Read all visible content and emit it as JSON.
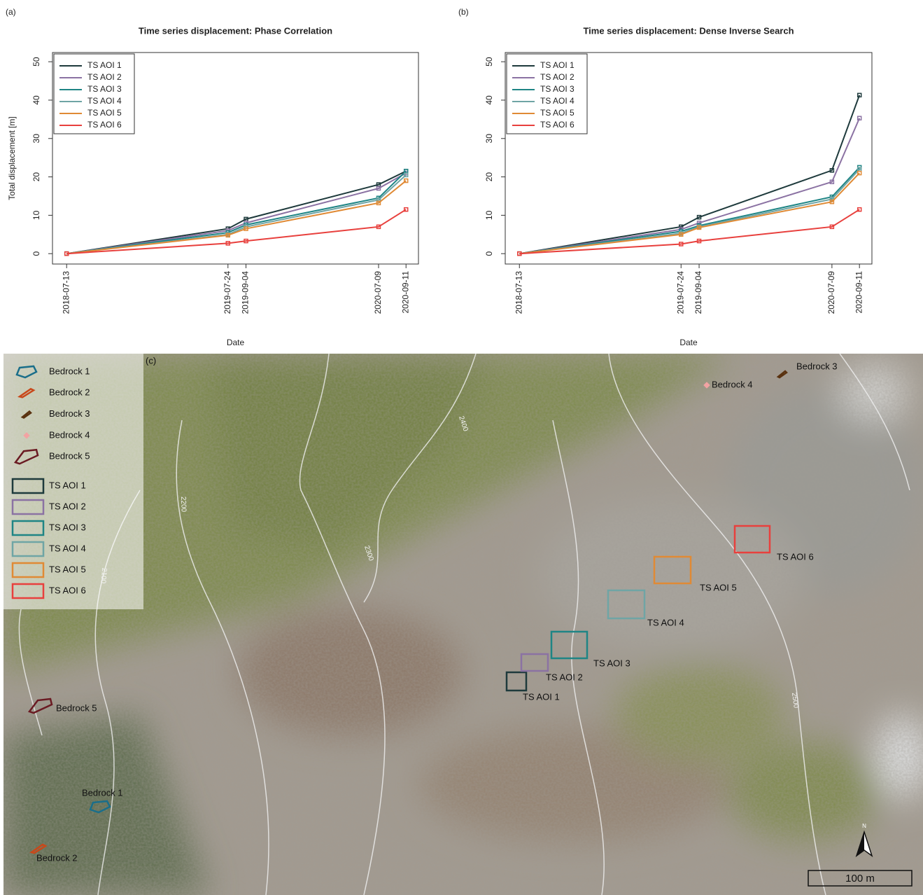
{
  "chart_data": [
    {
      "type": "line",
      "panel_label": "(a)",
      "title": "Time series displacement: Phase Correlation",
      "y_label": "Total displacement [m]",
      "x_label": "Date",
      "x": [
        "2018-07-13",
        "2019-07-24",
        "2019-09-04",
        "2020-07-09",
        "2020-09-11"
      ],
      "xlim": [
        "2018-06-10",
        "2020-10-10"
      ],
      "xticks": [
        "2018-07-13",
        "2019-07-24",
        "2019-09-04",
        "2020-07-09",
        "2020-09-11"
      ],
      "ylim": [
        -2.7,
        52.4
      ],
      "yticks": [
        0,
        10,
        20,
        30,
        40,
        50
      ],
      "legend": "top-left",
      "series": [
        {
          "name": "TS AOI 1",
          "color": "#1e3a3c",
          "values": [
            0,
            6.5,
            9,
            18,
            21.5
          ]
        },
        {
          "name": "TS AOI 2",
          "color": "#8b72a3",
          "values": [
            0,
            6,
            8,
            17,
            21
          ]
        },
        {
          "name": "TS AOI 3",
          "color": "#1f8585",
          "values": [
            0,
            5.5,
            7.5,
            14.5,
            21.5
          ]
        },
        {
          "name": "TS AOI 4",
          "color": "#6fa5a5",
          "values": [
            0,
            5,
            7,
            14,
            20.5
          ]
        },
        {
          "name": "TS AOI 5",
          "color": "#e08a35",
          "values": [
            0,
            4.8,
            6.5,
            13.2,
            19
          ]
        },
        {
          "name": "TS AOI 6",
          "color": "#e8403d",
          "values": [
            0,
            2.7,
            3.3,
            7,
            11.5
          ]
        }
      ]
    },
    {
      "type": "line",
      "panel_label": "(b)",
      "title": "Time series displacement: Dense Inverse Search",
      "x_label": "Date",
      "x": [
        "2018-07-13",
        "2019-07-24",
        "2019-09-04",
        "2020-07-09",
        "2020-09-11"
      ],
      "xlim": [
        "2018-06-10",
        "2020-10-10"
      ],
      "xticks": [
        "2018-07-13",
        "2019-07-24",
        "2019-09-04",
        "2020-07-09",
        "2020-09-11"
      ],
      "ylim": [
        -2.7,
        52.4
      ],
      "yticks": [
        0,
        10,
        20,
        30,
        40,
        50
      ],
      "legend": "top-left",
      "series": [
        {
          "name": "TS AOI 1",
          "color": "#1e3a3c",
          "values": [
            0,
            7,
            9.5,
            21.7,
            41.3
          ]
        },
        {
          "name": "TS AOI 2",
          "color": "#8b72a3",
          "values": [
            0,
            6.3,
            8,
            18.7,
            35.3
          ]
        },
        {
          "name": "TS AOI 3",
          "color": "#1f8585",
          "values": [
            0,
            5.8,
            7.3,
            14.8,
            22.5
          ]
        },
        {
          "name": "TS AOI 4",
          "color": "#6fa5a5",
          "values": [
            0,
            5.3,
            7,
            14.2,
            22
          ]
        },
        {
          "name": "TS AOI 5",
          "color": "#e08a35",
          "values": [
            0,
            5,
            6.8,
            13.5,
            21
          ]
        },
        {
          "name": "TS AOI 6",
          "color": "#e8403d",
          "values": [
            0,
            2.5,
            3.3,
            7,
            11.5
          ]
        }
      ]
    }
  ],
  "map": {
    "panel_label": "(c)",
    "legend": [
      "Bedrock 1",
      "Bedrock 2",
      "Bedrock 3",
      "Bedrock 4",
      "Bedrock 5",
      "TS AOI 1",
      "TS AOI 2",
      "TS AOI 3",
      "TS AOI 4",
      "TS AOI 5",
      "TS AOI 6"
    ],
    "labels": [
      "Bedrock 4",
      "Bedrock 3",
      "Bedrock 5",
      "Bedrock 1",
      "Bedrock 2",
      "TS AOI 6",
      "TS AOI 5",
      "TS AOI 4",
      "TS AOI 3",
      "TS AOI 2",
      "TS AOI 1"
    ],
    "contour_labels": [
      "2400",
      "2300",
      "2200",
      "2100",
      "2500"
    ],
    "north": "N",
    "scale_bar": "100 m"
  }
}
